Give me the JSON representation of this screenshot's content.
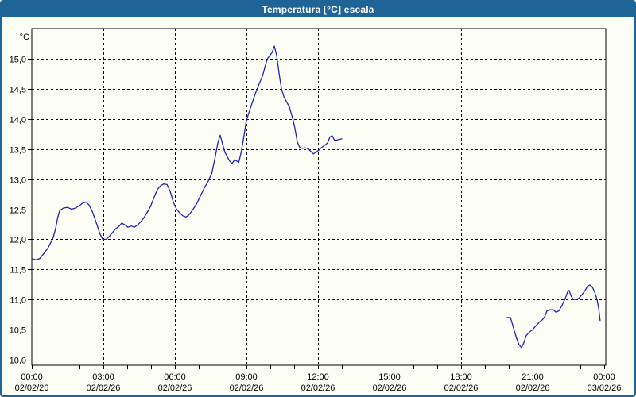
{
  "window": {
    "title": "Temperatura [°C] escala",
    "titlebar_color": "#1e6497",
    "frame_color": "#1e6497",
    "background_color": "#fcfdf5"
  },
  "chart_data": {
    "type": "line",
    "title": "Temperatura [°C] escala",
    "y_unit": "°C",
    "xlabel": "",
    "ylabel": "°C",
    "grid": "dashed",
    "legend": "none",
    "ylim": [
      9.95,
      15.55
    ],
    "xlim_hours": [
      0,
      24
    ],
    "grid_color": "#000000",
    "y_ticks": [
      {
        "value": 15.0,
        "label": "15,0"
      },
      {
        "value": 14.5,
        "label": "14,5"
      },
      {
        "value": 14.0,
        "label": "14,0"
      },
      {
        "value": 13.5,
        "label": "13,5"
      },
      {
        "value": 13.0,
        "label": "13,0"
      },
      {
        "value": 12.5,
        "label": "12,5"
      },
      {
        "value": 12.0,
        "label": "12,0"
      },
      {
        "value": 11.5,
        "label": "11,5"
      },
      {
        "value": 11.0,
        "label": "11,0"
      },
      {
        "value": 10.5,
        "label": "10,5"
      },
      {
        "value": 10.0,
        "label": "10,0"
      }
    ],
    "x_ticks": [
      {
        "hour": 0,
        "time": "00:00",
        "date": "02/02/26"
      },
      {
        "hour": 3,
        "time": "03:00",
        "date": "02/02/26"
      },
      {
        "hour": 6,
        "time": "06:00",
        "date": "02/02/26"
      },
      {
        "hour": 9,
        "time": "09:00",
        "date": "02/02/26"
      },
      {
        "hour": 12,
        "time": "12:00",
        "date": "02/02/26"
      },
      {
        "hour": 15,
        "time": "15:00",
        "date": "02/02/26"
      },
      {
        "hour": 18,
        "time": "18:00",
        "date": "02/02/26"
      },
      {
        "hour": 21,
        "time": "21:00",
        "date": "02/02/26"
      },
      {
        "hour": 24,
        "time": "00:00",
        "date": "03/02/26"
      }
    ],
    "minor_x_tick_every_hours": 1,
    "series": [
      {
        "name": "Temperatura",
        "color": "#2222b2",
        "segments": [
          [
            [
              0.0,
              11.68
            ],
            [
              0.17,
              11.66
            ],
            [
              0.33,
              11.68
            ],
            [
              0.5,
              11.76
            ],
            [
              0.67,
              11.85
            ],
            [
              0.8,
              11.95
            ],
            [
              0.9,
              12.03
            ],
            [
              1.0,
              12.18
            ],
            [
              1.08,
              12.35
            ],
            [
              1.17,
              12.48
            ],
            [
              1.33,
              12.52
            ],
            [
              1.5,
              12.53
            ],
            [
              1.67,
              12.5
            ],
            [
              1.83,
              12.52
            ],
            [
              2.0,
              12.56
            ],
            [
              2.13,
              12.6
            ],
            [
              2.27,
              12.62
            ],
            [
              2.4,
              12.57
            ],
            [
              2.55,
              12.45
            ],
            [
              2.7,
              12.28
            ],
            [
              2.85,
              12.1
            ],
            [
              2.97,
              12.0
            ],
            [
              3.13,
              12.0
            ],
            [
              3.27,
              12.06
            ],
            [
              3.4,
              12.12
            ],
            [
              3.53,
              12.18
            ],
            [
              3.67,
              12.22
            ],
            [
              3.77,
              12.27
            ],
            [
              3.9,
              12.24
            ],
            [
              4.03,
              12.2
            ],
            [
              4.17,
              12.22
            ],
            [
              4.3,
              12.2
            ],
            [
              4.47,
              12.25
            ],
            [
              4.63,
              12.32
            ],
            [
              4.8,
              12.42
            ],
            [
              4.97,
              12.54
            ],
            [
              5.13,
              12.7
            ],
            [
              5.27,
              12.83
            ],
            [
              5.4,
              12.89
            ],
            [
              5.53,
              12.92
            ],
            [
              5.67,
              12.91
            ],
            [
              5.8,
              12.8
            ],
            [
              5.93,
              12.62
            ],
            [
              6.07,
              12.5
            ],
            [
              6.2,
              12.44
            ],
            [
              6.33,
              12.39
            ],
            [
              6.47,
              12.37
            ],
            [
              6.6,
              12.41
            ],
            [
              6.73,
              12.48
            ],
            [
              6.9,
              12.58
            ],
            [
              7.07,
              12.72
            ],
            [
              7.23,
              12.85
            ],
            [
              7.4,
              12.97
            ],
            [
              7.55,
              13.1
            ],
            [
              7.68,
              13.35
            ],
            [
              7.8,
              13.6
            ],
            [
              7.9,
              13.73
            ],
            [
              8.0,
              13.58
            ],
            [
              8.1,
              13.44
            ],
            [
              8.2,
              13.37
            ],
            [
              8.3,
              13.3
            ],
            [
              8.4,
              13.26
            ],
            [
              8.5,
              13.32
            ],
            [
              8.6,
              13.3
            ],
            [
              8.68,
              13.28
            ],
            [
              8.78,
              13.45
            ],
            [
              8.88,
              13.68
            ],
            [
              9.0,
              13.98
            ],
            [
              9.1,
              14.1
            ],
            [
              9.25,
              14.28
            ],
            [
              9.4,
              14.45
            ],
            [
              9.55,
              14.6
            ],
            [
              9.68,
              14.72
            ],
            [
              9.8,
              14.9
            ],
            [
              9.88,
              15.0
            ],
            [
              9.97,
              15.05
            ],
            [
              10.07,
              15.1
            ],
            [
              10.17,
              15.21
            ],
            [
              10.27,
              15.05
            ],
            [
              10.37,
              14.75
            ],
            [
              10.47,
              14.5
            ],
            [
              10.57,
              14.37
            ],
            [
              10.7,
              14.27
            ],
            [
              10.8,
              14.2
            ],
            [
              10.93,
              14.02
            ],
            [
              11.03,
              13.85
            ],
            [
              11.13,
              13.62
            ],
            [
              11.23,
              13.53
            ],
            [
              11.33,
              13.51
            ],
            [
              11.47,
              13.52
            ],
            [
              11.6,
              13.5
            ],
            [
              11.7,
              13.46
            ],
            [
              11.8,
              13.42
            ],
            [
              11.93,
              13.45
            ],
            [
              12.03,
              13.48
            ],
            [
              12.17,
              13.53
            ],
            [
              12.3,
              13.57
            ],
            [
              12.4,
              13.6
            ],
            [
              12.5,
              13.7
            ],
            [
              12.6,
              13.72
            ],
            [
              12.7,
              13.64
            ],
            [
              12.8,
              13.65
            ],
            [
              12.9,
              13.66
            ],
            [
              13.0,
              13.67
            ]
          ],
          [
            [
              19.93,
              10.7
            ],
            [
              20.07,
              10.7
            ],
            [
              20.13,
              10.62
            ],
            [
              20.23,
              10.48
            ],
            [
              20.33,
              10.35
            ],
            [
              20.43,
              10.25
            ],
            [
              20.53,
              10.2
            ],
            [
              20.63,
              10.28
            ],
            [
              20.73,
              10.4
            ],
            [
              20.87,
              10.46
            ],
            [
              21.0,
              10.5
            ],
            [
              21.13,
              10.56
            ],
            [
              21.27,
              10.62
            ],
            [
              21.4,
              10.66
            ],
            [
              21.5,
              10.71
            ],
            [
              21.6,
              10.81
            ],
            [
              21.73,
              10.83
            ],
            [
              21.87,
              10.83
            ],
            [
              21.97,
              10.79
            ],
            [
              22.1,
              10.81
            ],
            [
              22.23,
              10.9
            ],
            [
              22.37,
              11.02
            ],
            [
              22.47,
              11.13
            ],
            [
              22.53,
              11.15
            ],
            [
              22.6,
              11.07
            ],
            [
              22.7,
              11.0
            ],
            [
              22.83,
              11.0
            ],
            [
              22.93,
              11.02
            ],
            [
              23.07,
              11.08
            ],
            [
              23.2,
              11.15
            ],
            [
              23.3,
              11.22
            ],
            [
              23.4,
              11.24
            ],
            [
              23.5,
              11.21
            ],
            [
              23.6,
              11.12
            ],
            [
              23.7,
              11.0
            ],
            [
              23.77,
              10.85
            ],
            [
              23.83,
              10.65
            ]
          ]
        ]
      }
    ]
  }
}
